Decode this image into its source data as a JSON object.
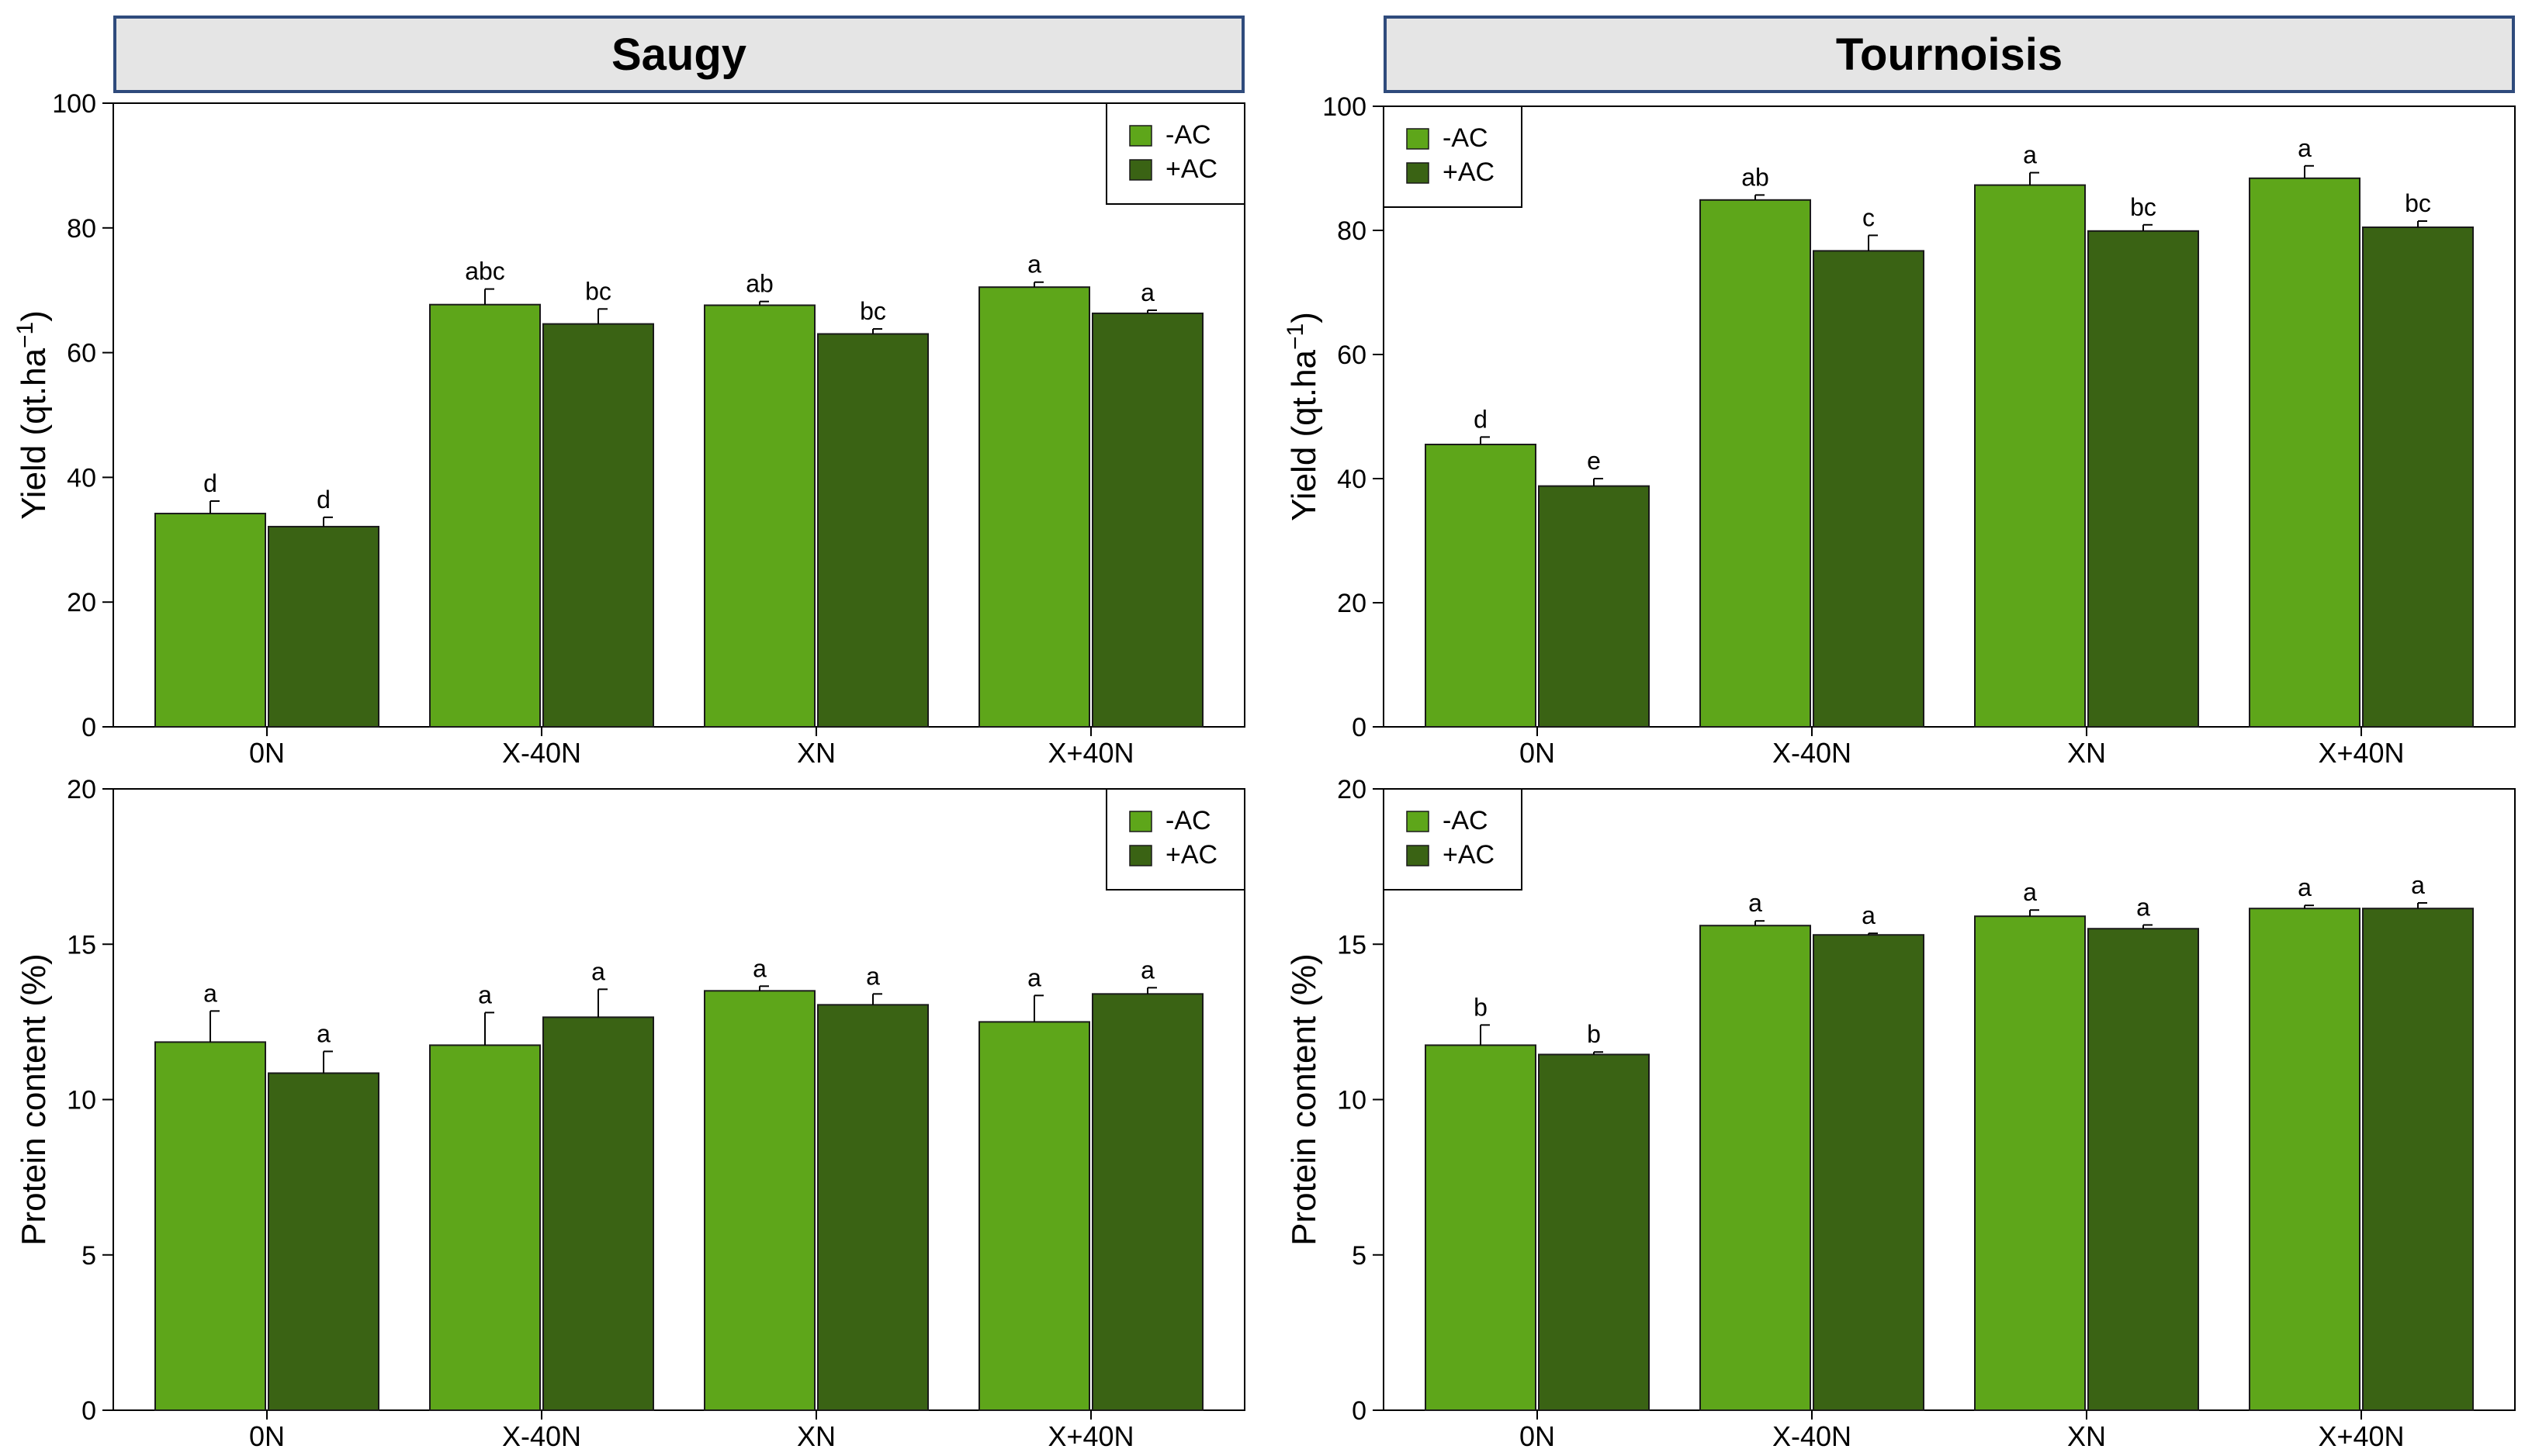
{
  "sites": [
    "Saugy",
    "Tournoisis"
  ],
  "legend": {
    "entries": [
      "-AC",
      "+AC"
    ]
  },
  "colors": {
    "minus_ac": "#5ea61a",
    "plus_ac": "#3a6314",
    "header_border": "#2f4b7c",
    "header_fill": "#e5e5e5"
  },
  "chart_data": [
    {
      "type": "bar",
      "site": "Saugy",
      "variable": "yield",
      "categories": [
        "0N",
        "X-40N",
        "XN",
        "X+40N"
      ],
      "ylabel_main": "Yield (qt.ha",
      "ylabel_sup": "−1",
      "ylabel_end": ")",
      "ylim": [
        0,
        100
      ],
      "yticks": [
        0,
        20,
        40,
        60,
        80,
        100
      ],
      "legend_position": "top-right",
      "series": [
        {
          "name": "-AC",
          "values": [
            34.2,
            67.7,
            67.6,
            70.5
          ],
          "errors": [
            2.0,
            2.5,
            0.6,
            0.8
          ],
          "letters": [
            "d",
            "abc",
            "ab",
            "a"
          ]
        },
        {
          "name": "+AC",
          "values": [
            32.1,
            64.6,
            63.0,
            66.3
          ],
          "errors": [
            1.5,
            2.4,
            0.8,
            0.5
          ],
          "letters": [
            "d",
            "bc",
            "bc",
            "a"
          ]
        }
      ]
    },
    {
      "type": "bar",
      "site": "Tournoisis",
      "variable": "yield",
      "categories": [
        "0N",
        "X-40N",
        "XN",
        "X+40N"
      ],
      "ylabel_main": "Yield (qt.ha",
      "ylabel_sup": "−1",
      "ylabel_end": ")",
      "ylim": [
        0,
        100
      ],
      "yticks": [
        0,
        20,
        40,
        60,
        80,
        100
      ],
      "legend_position": "top-left",
      "series": [
        {
          "name": "-AC",
          "values": [
            45.5,
            84.9,
            87.3,
            88.4
          ],
          "errors": [
            1.2,
            0.8,
            2.0,
            2.0
          ],
          "letters": [
            "d",
            "ab",
            "a",
            "a"
          ]
        },
        {
          "name": "+AC",
          "values": [
            38.8,
            76.7,
            79.9,
            80.5
          ],
          "errors": [
            1.2,
            2.5,
            1.0,
            1.0
          ],
          "letters": [
            "e",
            "c",
            "bc",
            "bc"
          ]
        }
      ]
    },
    {
      "type": "bar",
      "site": "Saugy",
      "variable": "protein",
      "categories": [
        "0N",
        "X-40N",
        "XN",
        "X+40N"
      ],
      "ylabel_main": "Protein content (%)",
      "ylabel_sup": "",
      "ylabel_end": "",
      "ylim": [
        0,
        20
      ],
      "yticks": [
        0,
        5,
        10,
        15,
        20
      ],
      "legend_position": "top-right",
      "series": [
        {
          "name": "-AC",
          "values": [
            11.85,
            11.75,
            13.5,
            12.5
          ],
          "errors": [
            1.0,
            1.05,
            0.15,
            0.85
          ],
          "letters": [
            "a",
            "a",
            "a",
            "a"
          ]
        },
        {
          "name": "+AC",
          "values": [
            10.85,
            12.65,
            13.05,
            13.4
          ],
          "errors": [
            0.7,
            0.9,
            0.35,
            0.2
          ],
          "letters": [
            "a",
            "a",
            "a",
            "a"
          ]
        }
      ]
    },
    {
      "type": "bar",
      "site": "Tournoisis",
      "variable": "protein",
      "categories": [
        "0N",
        "X-40N",
        "XN",
        "X+40N"
      ],
      "ylabel_main": "Protein content (%)",
      "ylabel_sup": "",
      "ylabel_end": "",
      "ylim": [
        0,
        20
      ],
      "yticks": [
        0,
        5,
        10,
        15,
        20
      ],
      "legend_position": "top-left",
      "series": [
        {
          "name": "-AC",
          "values": [
            11.75,
            15.6,
            15.9,
            16.15
          ],
          "errors": [
            0.65,
            0.15,
            0.2,
            0.1
          ],
          "letters": [
            "b",
            "a",
            "a",
            "a"
          ]
        },
        {
          "name": "+AC",
          "values": [
            11.45,
            15.3,
            15.5,
            16.15
          ],
          "errors": [
            0.08,
            0.05,
            0.12,
            0.18
          ],
          "letters": [
            "b",
            "a",
            "a",
            "a"
          ]
        }
      ]
    }
  ]
}
